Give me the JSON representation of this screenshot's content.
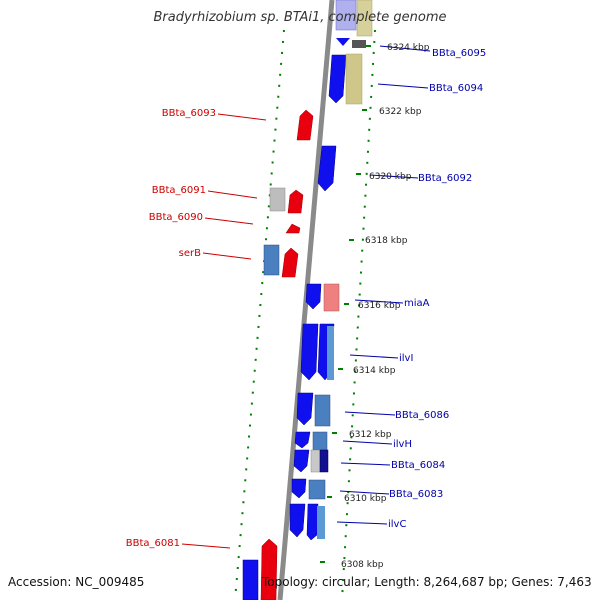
{
  "title": "Bradyrhizobium sp. BTAi1, complete genome",
  "footer": {
    "accession": "Accession: NC_009485",
    "topology": "Topology: circular; Length: 8,264,687 bp; Genes: 7,463"
  },
  "colors": {
    "forward": "#ee0000",
    "reverse": "#1010ee",
    "backbone": "#888888",
    "ticks": "#008000",
    "label_forward": "#cc0000",
    "label_reverse": "#0000aa"
  },
  "scale_labels": [
    "6324 kbp",
    "6322 kbp",
    "6320 kbp",
    "6318 kbp",
    "6316 kbp",
    "6314 kbp",
    "6312 kbp",
    "6310 kbp",
    "6308 kbp"
  ],
  "gene_labels_left": [
    "BBta_6093",
    "BBta_6091",
    "BBta_6090",
    "serB",
    "BBta_6081"
  ],
  "gene_labels_right": [
    "BBta_6095",
    "BBta_6094",
    "BBta_6092",
    "miaA",
    "ilvI",
    "BBta_6086",
    "ilvH",
    "BBta_6084",
    "BBta_6083",
    "ilvC"
  ]
}
